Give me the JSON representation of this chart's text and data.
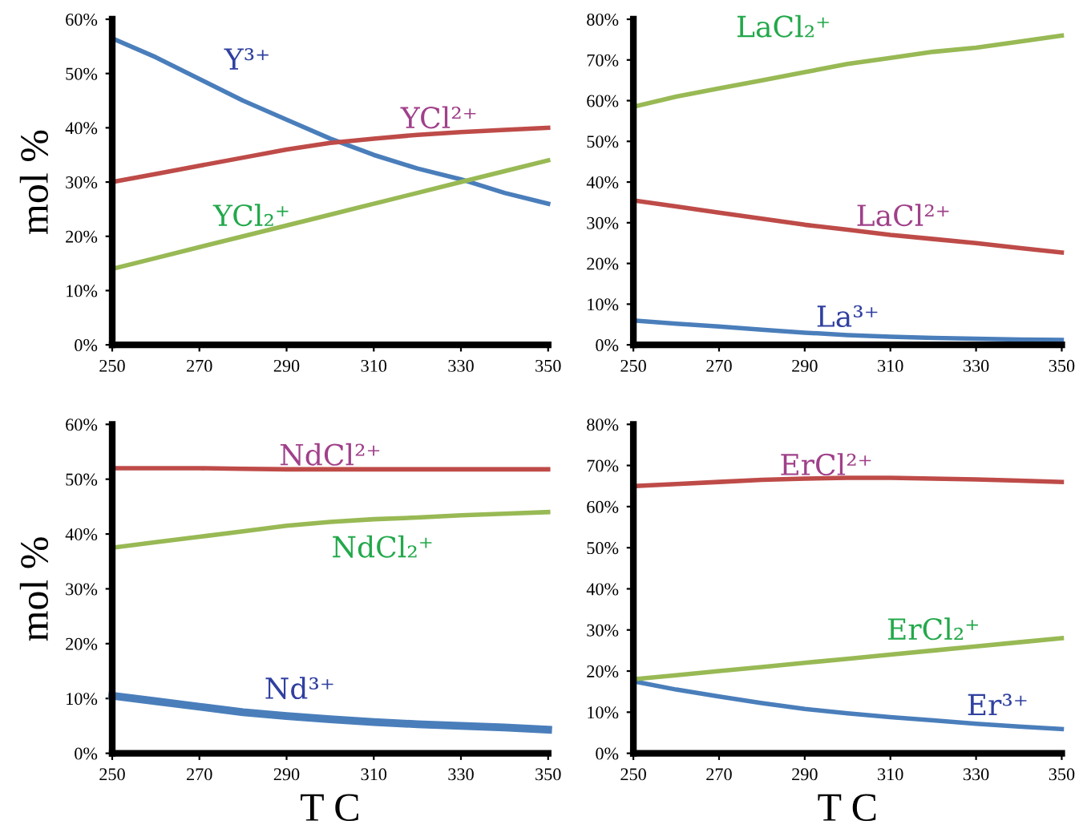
{
  "chart_data": [
    {
      "type": "line",
      "ylabel": "mol %",
      "x": [
        250,
        260,
        270,
        280,
        290,
        300,
        310,
        320,
        330,
        340,
        350
      ],
      "xlim": [
        250,
        350
      ],
      "xticks": [
        250,
        270,
        290,
        310,
        330,
        350
      ],
      "ylim": [
        0,
        60
      ],
      "yticks": [
        {
          "value": 0,
          "label": "0%"
        },
        {
          "value": 10,
          "label": "10%"
        },
        {
          "value": 20,
          "label": "20%"
        },
        {
          "value": 30,
          "label": "30%"
        },
        {
          "value": 40,
          "label": "40%"
        },
        {
          "value": 50,
          "label": "50%"
        },
        {
          "value": 60,
          "label": "60%"
        }
      ],
      "grid": false,
      "legend": false,
      "series": [
        {
          "name": "Y³⁺",
          "color": "#4a7ebb",
          "values": [
            56.5,
            53,
            49,
            45,
            41.5,
            38,
            35,
            32.5,
            30.5,
            28,
            26
          ]
        },
        {
          "name": "YCl²⁺",
          "color": "#be4b48",
          "values": [
            30,
            31.5,
            33,
            34.5,
            36,
            37.2,
            38,
            38.7,
            39.2,
            39.6,
            40
          ]
        },
        {
          "name": "YCl₂⁺",
          "color": "#98b954",
          "values": [
            14,
            16,
            18,
            20,
            22,
            24,
            26,
            28,
            30,
            32,
            34
          ]
        }
      ]
    },
    {
      "type": "line",
      "x": [
        250,
        260,
        270,
        280,
        290,
        300,
        310,
        320,
        330,
        340,
        350
      ],
      "xlim": [
        250,
        350
      ],
      "xticks": [
        250,
        270,
        290,
        310,
        330,
        350
      ],
      "ylim": [
        0,
        80
      ],
      "yticks": [
        {
          "value": 0,
          "label": "0%"
        },
        {
          "value": 10,
          "label": "10%"
        },
        {
          "value": 20,
          "label": "20%"
        },
        {
          "value": 30,
          "label": "30%"
        },
        {
          "value": 40,
          "label": "40%"
        },
        {
          "value": 50,
          "label": "50%"
        },
        {
          "value": 60,
          "label": "60%"
        },
        {
          "value": 70,
          "label": "70%"
        },
        {
          "value": 80,
          "label": "80%"
        }
      ],
      "grid": false,
      "legend": false,
      "series": [
        {
          "name": "La³⁺",
          "color": "#4a7ebb",
          "values": [
            6,
            5.2,
            4.5,
            3.7,
            3,
            2.4,
            2,
            1.7,
            1.5,
            1.3,
            1.2
          ]
        },
        {
          "name": "LaCl²⁺",
          "color": "#be4b48",
          "values": [
            35.5,
            34,
            32.5,
            31,
            29.5,
            28.3,
            27,
            26,
            25,
            23.8,
            22.7
          ]
        },
        {
          "name": "LaCl₂⁺",
          "color": "#98b954",
          "values": [
            58.5,
            61,
            63,
            65,
            67,
            69,
            70.5,
            72,
            73,
            74.5,
            76
          ]
        }
      ]
    },
    {
      "type": "line",
      "xlabel": "T C",
      "ylabel": "mol %",
      "x": [
        250,
        260,
        270,
        280,
        290,
        300,
        310,
        320,
        330,
        340,
        350
      ],
      "xlim": [
        250,
        350
      ],
      "xticks": [
        250,
        270,
        290,
        310,
        330,
        350
      ],
      "ylim": [
        0,
        60
      ],
      "yticks": [
        {
          "value": 0,
          "label": "0%"
        },
        {
          "value": 10,
          "label": "10%"
        },
        {
          "value": 20,
          "label": "20%"
        },
        {
          "value": 30,
          "label": "30%"
        },
        {
          "value": 40,
          "label": "40%"
        },
        {
          "value": 50,
          "label": "50%"
        },
        {
          "value": 60,
          "label": "60%"
        }
      ],
      "grid": false,
      "legend": false,
      "series": [
        {
          "name": "Nd³⁺",
          "color": "#4a7ebb",
          "values": [
            10.5,
            9.5,
            8.5,
            7.5,
            6.8,
            6.2,
            5.7,
            5.3,
            5,
            4.7,
            4.3
          ]
        },
        {
          "name": "NdCl²⁺",
          "color": "#be4b48",
          "values": [
            52,
            52,
            52,
            51.9,
            51.8,
            51.8,
            51.8,
            51.8,
            51.8,
            51.8,
            51.8
          ]
        },
        {
          "name": "NdCl₂⁺",
          "color": "#98b954",
          "values": [
            37.5,
            38.5,
            39.5,
            40.5,
            41.5,
            42.2,
            42.7,
            43,
            43.4,
            43.7,
            44
          ]
        }
      ]
    },
    {
      "type": "line",
      "xlabel": "T C",
      "x": [
        250,
        260,
        270,
        280,
        290,
        300,
        310,
        320,
        330,
        340,
        350
      ],
      "xlim": [
        250,
        350
      ],
      "xticks": [
        250,
        270,
        290,
        310,
        330,
        350
      ],
      "ylim": [
        0,
        80
      ],
      "yticks": [
        {
          "value": 0,
          "label": "0%"
        },
        {
          "value": 10,
          "label": "10%"
        },
        {
          "value": 20,
          "label": "20%"
        },
        {
          "value": 30,
          "label": "30%"
        },
        {
          "value": 40,
          "label": "40%"
        },
        {
          "value": 50,
          "label": "50%"
        },
        {
          "value": 60,
          "label": "60%"
        },
        {
          "value": 70,
          "label": "70%"
        },
        {
          "value": 80,
          "label": "80%"
        }
      ],
      "grid": false,
      "legend": false,
      "series": [
        {
          "name": "Er³⁺",
          "color": "#4a7ebb",
          "values": [
            17.5,
            15.5,
            13.8,
            12.2,
            10.8,
            9.7,
            8.8,
            8,
            7.2,
            6.5,
            5.9
          ]
        },
        {
          "name": "ErCl²⁺",
          "color": "#be4b48",
          "values": [
            65,
            65.5,
            66,
            66.5,
            66.8,
            67,
            67,
            66.8,
            66.6,
            66.3,
            66
          ]
        },
        {
          "name": "ErCl₂⁺",
          "color": "#98b954",
          "values": [
            18,
            19,
            20,
            21,
            22,
            23,
            24,
            25,
            26,
            27,
            28
          ]
        }
      ]
    }
  ]
}
